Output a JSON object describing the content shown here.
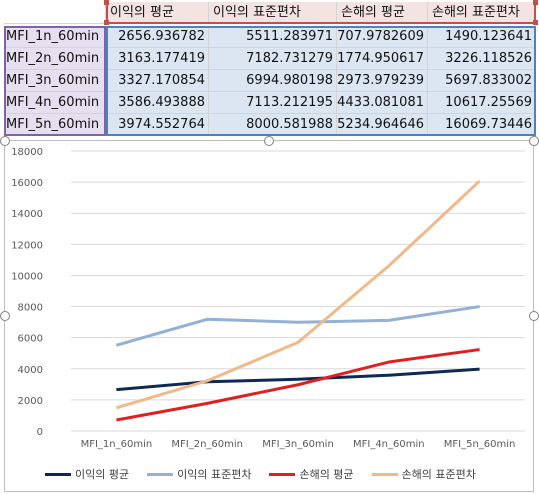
{
  "table": {
    "headers": [
      "이익의 평균",
      "이익의 표준편차",
      "손해의 평균",
      "손해의 표준편차"
    ],
    "rows": [
      {
        "label": "MFI_1n_60min",
        "values": [
          "2656.936782",
          "5511.283971",
          "707.9782609",
          "1490.123641"
        ]
      },
      {
        "label": "MFI_2n_60min",
        "values": [
          "3163.177419",
          "7182.731279",
          "1774.950617",
          "3226.118526"
        ]
      },
      {
        "label": "MFI_3n_60min",
        "values": [
          "3327.170854",
          "6994.980198",
          "2973.979239",
          "5697.833002"
        ]
      },
      {
        "label": "MFI_4n_60min",
        "values": [
          "3586.493888",
          "7113.212195",
          "4433.081081",
          "10617.25569"
        ]
      },
      {
        "label": "MFI_5n_60min",
        "values": [
          "3974.552764",
          "8000.581988",
          "5234.964646",
          "16069.73446"
        ]
      }
    ]
  },
  "chart_data": {
    "type": "line",
    "categories": [
      "MFI_1n_60min",
      "MFI_2n_60min",
      "MFI_3n_60min",
      "MFI_4n_60min",
      "MFI_5n_60min"
    ],
    "ylim": [
      0,
      18000
    ],
    "yticks": [
      0,
      2000,
      4000,
      6000,
      8000,
      10000,
      12000,
      14000,
      16000,
      18000
    ],
    "grid": true,
    "legend_position": "bottom",
    "series": [
      {
        "name": "이익의 평균",
        "color": "#0f2a52",
        "values": [
          2656.936782,
          3163.177419,
          3327.170854,
          3586.493888,
          3974.552764
        ]
      },
      {
        "name": "이익의 표준편차",
        "color": "#94b0d6",
        "values": [
          5511.283971,
          7182.731279,
          6994.980198,
          7113.212195,
          8000.581988
        ]
      },
      {
        "name": "손해의 평균",
        "color": "#e02020",
        "values": [
          707.9782609,
          1774.950617,
          2973.979239,
          4433.081081,
          5234.964646
        ]
      },
      {
        "name": "손해의 표준편차",
        "color": "#f0b98a",
        "values": [
          1490.123641,
          3226.118526,
          5697.833002,
          10617.25569,
          16069.73446
        ]
      }
    ]
  }
}
